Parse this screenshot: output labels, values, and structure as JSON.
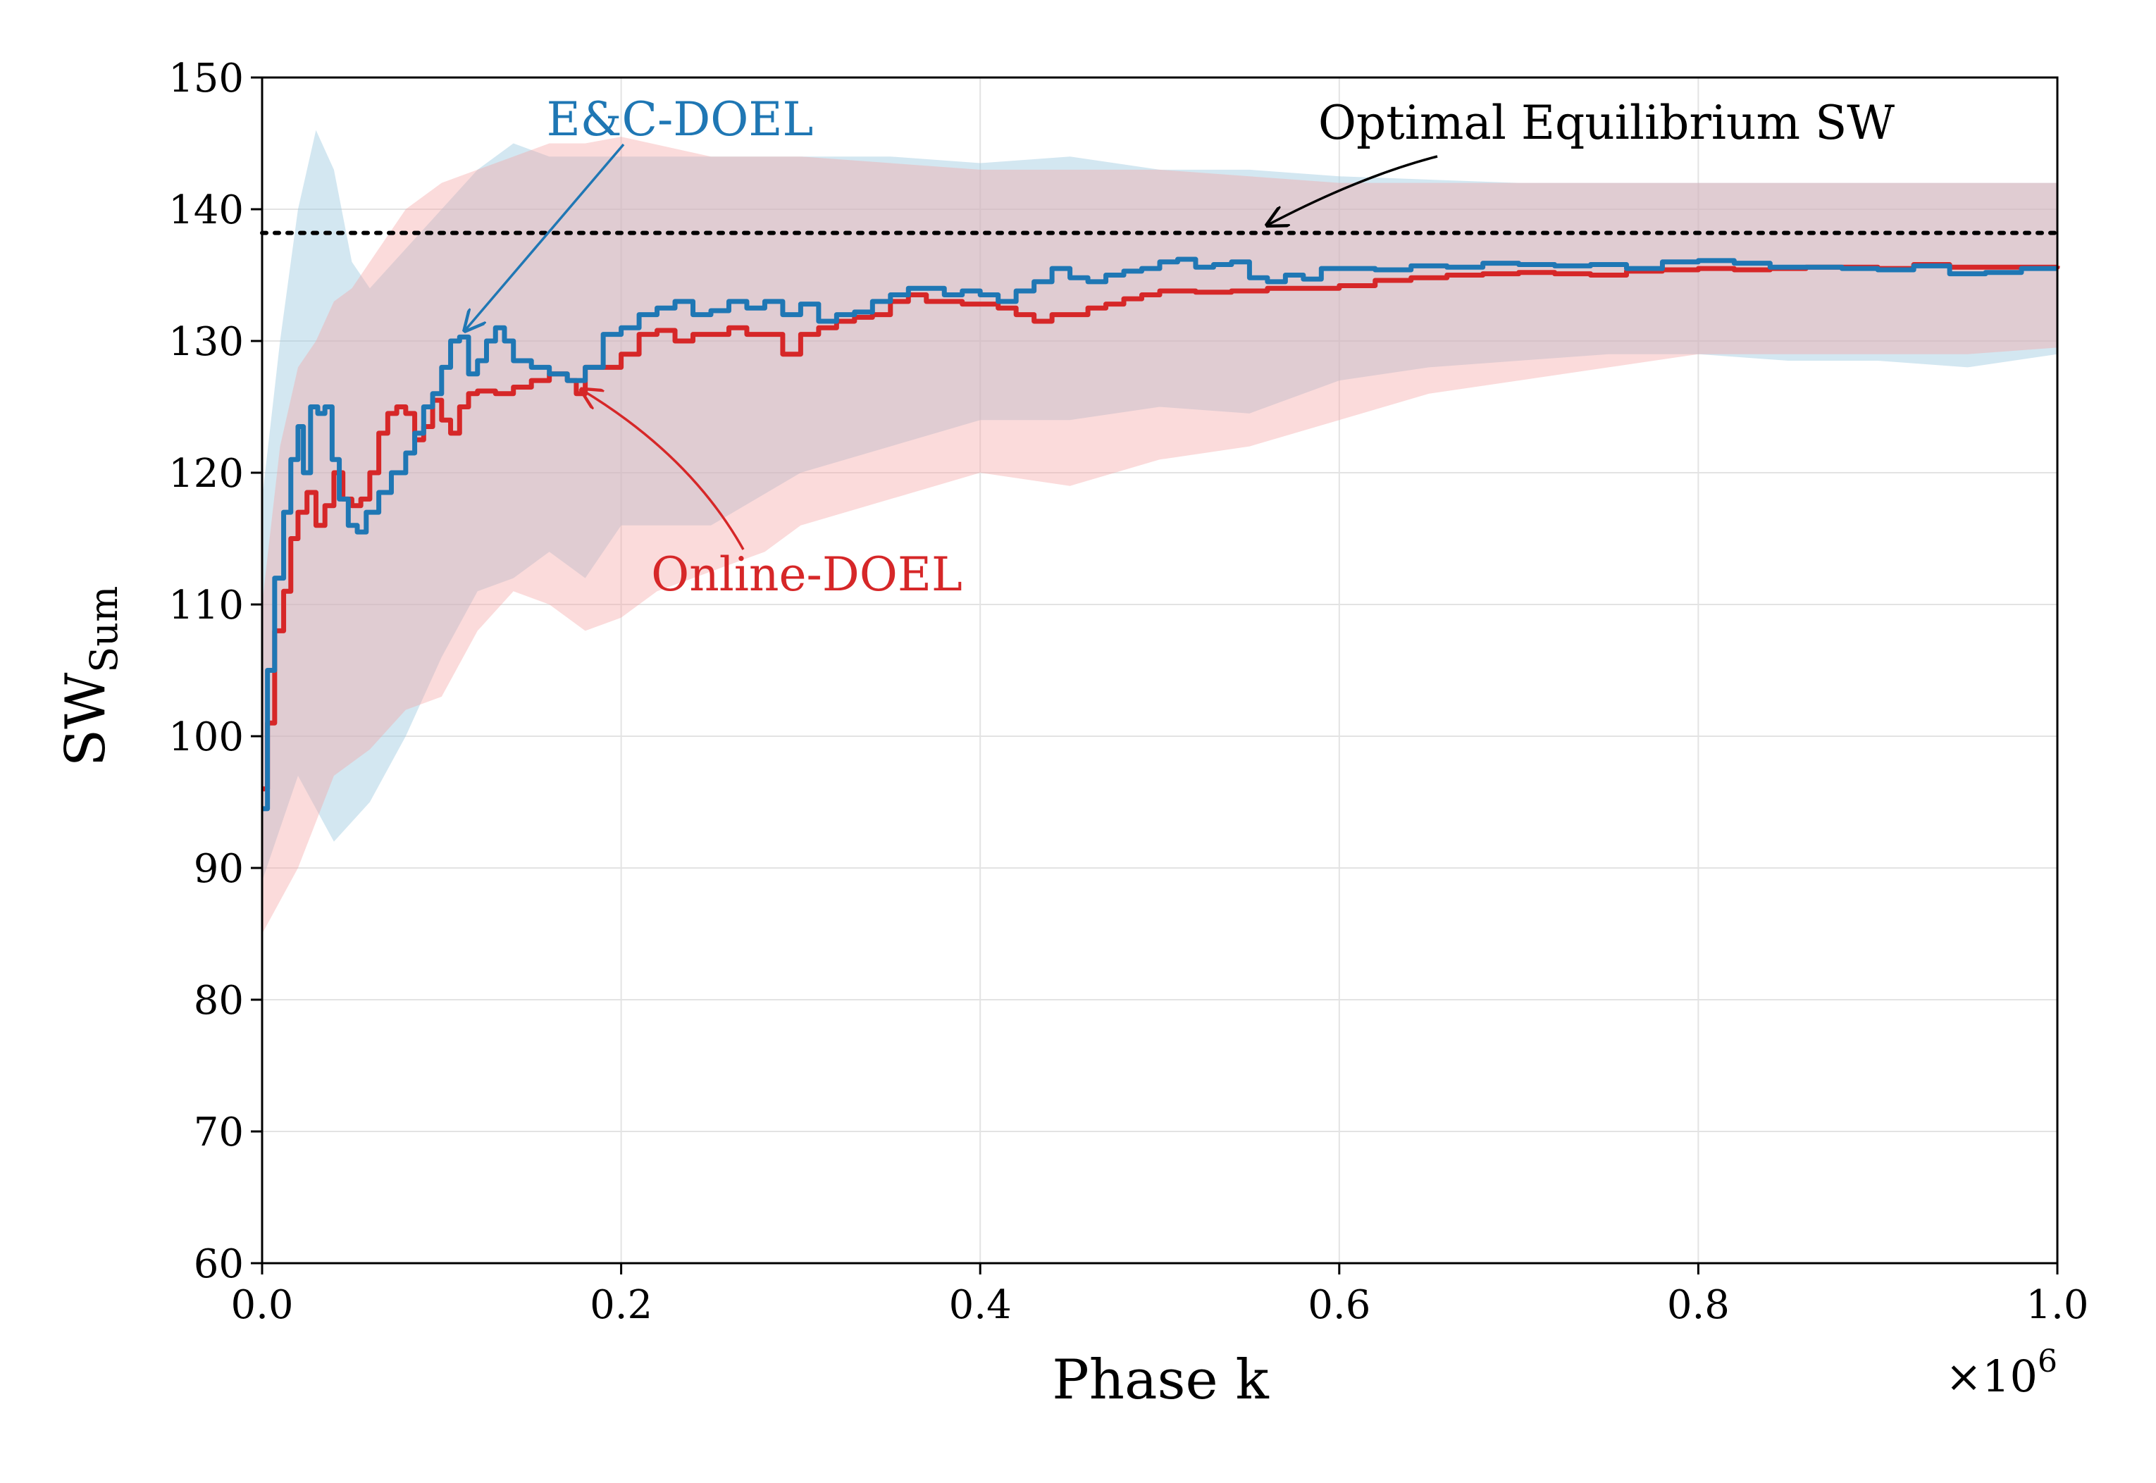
{
  "chart_data": {
    "type": "line",
    "xlabel": "Phase k",
    "ylabel_main": "SW",
    "ylabel_sub": "Sum",
    "x_multiplier_prefix": "×10",
    "x_multiplier_exp": "6",
    "xlim": [
      0,
      1.0
    ],
    "ylim": [
      60,
      150
    ],
    "xticks": [
      0.0,
      0.2,
      0.4,
      0.6,
      0.8,
      1.0
    ],
    "xtick_labels": [
      "0.0",
      "0.2",
      "0.4",
      "0.6",
      "0.8",
      "1.0"
    ],
    "yticks": [
      60,
      70,
      80,
      90,
      100,
      110,
      120,
      130,
      140,
      150
    ],
    "ytick_labels": [
      "60",
      "70",
      "80",
      "90",
      "100",
      "110",
      "120",
      "130",
      "140",
      "150"
    ],
    "grid": true,
    "reference_line": {
      "label": "Optimal Equilibrium SW",
      "y": 138.2,
      "style": "dotted",
      "color": "#000000"
    },
    "series": [
      {
        "name": "E&C-DOEL",
        "color": "#1f77b4",
        "band_color": "#9ecae1",
        "points": [
          [
            0.0,
            94.5
          ],
          [
            0.003,
            105
          ],
          [
            0.007,
            112
          ],
          [
            0.012,
            117
          ],
          [
            0.016,
            121
          ],
          [
            0.02,
            123.5
          ],
          [
            0.023,
            120
          ],
          [
            0.027,
            125
          ],
          [
            0.031,
            124.5
          ],
          [
            0.035,
            125
          ],
          [
            0.039,
            121
          ],
          [
            0.043,
            118
          ],
          [
            0.048,
            116
          ],
          [
            0.053,
            115.5
          ],
          [
            0.058,
            117
          ],
          [
            0.065,
            118.5
          ],
          [
            0.072,
            120
          ],
          [
            0.08,
            121.5
          ],
          [
            0.085,
            123
          ],
          [
            0.09,
            125
          ],
          [
            0.095,
            126
          ],
          [
            0.1,
            128
          ],
          [
            0.105,
            130
          ],
          [
            0.11,
            130.3
          ],
          [
            0.115,
            127.5
          ],
          [
            0.12,
            128.5
          ],
          [
            0.125,
            130
          ],
          [
            0.13,
            131
          ],
          [
            0.135,
            130
          ],
          [
            0.14,
            128.5
          ],
          [
            0.15,
            128
          ],
          [
            0.16,
            127.5
          ],
          [
            0.17,
            127
          ],
          [
            0.18,
            128
          ],
          [
            0.19,
            130.5
          ],
          [
            0.2,
            131
          ],
          [
            0.21,
            132
          ],
          [
            0.22,
            132.5
          ],
          [
            0.23,
            133
          ],
          [
            0.24,
            132
          ],
          [
            0.25,
            132.3
          ],
          [
            0.26,
            133
          ],
          [
            0.27,
            132.5
          ],
          [
            0.28,
            133
          ],
          [
            0.29,
            132
          ],
          [
            0.3,
            132.8
          ],
          [
            0.31,
            131.5
          ],
          [
            0.32,
            132
          ],
          [
            0.33,
            132.2
          ],
          [
            0.34,
            133
          ],
          [
            0.35,
            133.5
          ],
          [
            0.36,
            134
          ],
          [
            0.37,
            134
          ],
          [
            0.38,
            133.5
          ],
          [
            0.39,
            133.8
          ],
          [
            0.4,
            133.5
          ],
          [
            0.41,
            133
          ],
          [
            0.42,
            133.8
          ],
          [
            0.43,
            134.5
          ],
          [
            0.44,
            135.5
          ],
          [
            0.45,
            134.8
          ],
          [
            0.46,
            134.5
          ],
          [
            0.47,
            135
          ],
          [
            0.48,
            135.3
          ],
          [
            0.49,
            135.5
          ],
          [
            0.5,
            136
          ],
          [
            0.51,
            136.2
          ],
          [
            0.52,
            135.6
          ],
          [
            0.53,
            135.8
          ],
          [
            0.54,
            136
          ],
          [
            0.55,
            134.8
          ],
          [
            0.56,
            134.5
          ],
          [
            0.57,
            135
          ],
          [
            0.58,
            134.7
          ],
          [
            0.59,
            135.5
          ],
          [
            0.6,
            135.5
          ],
          [
            0.62,
            135.4
          ],
          [
            0.64,
            135.7
          ],
          [
            0.66,
            135.6
          ],
          [
            0.68,
            135.9
          ],
          [
            0.7,
            135.8
          ],
          [
            0.72,
            135.7
          ],
          [
            0.74,
            135.8
          ],
          [
            0.76,
            135.5
          ],
          [
            0.78,
            136
          ],
          [
            0.8,
            136.1
          ],
          [
            0.82,
            135.9
          ],
          [
            0.84,
            135.6
          ],
          [
            0.86,
            135.6
          ],
          [
            0.88,
            135.5
          ],
          [
            0.9,
            135.4
          ],
          [
            0.92,
            135.7
          ],
          [
            0.94,
            135.1
          ],
          [
            0.96,
            135.2
          ],
          [
            0.98,
            135.5
          ],
          [
            1.0,
            135.5
          ]
        ],
        "band_upper": [
          [
            0.0,
            118
          ],
          [
            0.01,
            130
          ],
          [
            0.02,
            140
          ],
          [
            0.03,
            146
          ],
          [
            0.04,
            143
          ],
          [
            0.05,
            136
          ],
          [
            0.06,
            134
          ],
          [
            0.08,
            137
          ],
          [
            0.1,
            140
          ],
          [
            0.12,
            143
          ],
          [
            0.14,
            145
          ],
          [
            0.16,
            144
          ],
          [
            0.18,
            144
          ],
          [
            0.2,
            144
          ],
          [
            0.25,
            144
          ],
          [
            0.3,
            144
          ],
          [
            0.35,
            144
          ],
          [
            0.4,
            143.5
          ],
          [
            0.45,
            144
          ],
          [
            0.5,
            143
          ],
          [
            0.55,
            143
          ],
          [
            0.6,
            142.5
          ],
          [
            0.7,
            142
          ],
          [
            0.8,
            142
          ],
          [
            0.9,
            142
          ],
          [
            1.0,
            142
          ]
        ],
        "band_lower": [
          [
            0.0,
            89
          ],
          [
            0.02,
            97
          ],
          [
            0.04,
            92
          ],
          [
            0.06,
            95
          ],
          [
            0.08,
            100
          ],
          [
            0.1,
            106
          ],
          [
            0.12,
            111
          ],
          [
            0.14,
            112
          ],
          [
            0.16,
            114
          ],
          [
            0.18,
            112
          ],
          [
            0.2,
            116
          ],
          [
            0.25,
            116
          ],
          [
            0.3,
            120
          ],
          [
            0.35,
            122
          ],
          [
            0.4,
            124
          ],
          [
            0.45,
            124
          ],
          [
            0.5,
            125
          ],
          [
            0.55,
            124.5
          ],
          [
            0.6,
            127
          ],
          [
            0.65,
            128
          ],
          [
            0.7,
            128.5
          ],
          [
            0.75,
            129
          ],
          [
            0.8,
            129
          ],
          [
            0.85,
            128.5
          ],
          [
            0.9,
            128.5
          ],
          [
            0.95,
            128
          ],
          [
            1.0,
            129
          ]
        ]
      },
      {
        "name": "Online-DOEL",
        "color": "#d62728",
        "band_color": "#f4a6a6",
        "points": [
          [
            0.0,
            96
          ],
          [
            0.003,
            101
          ],
          [
            0.007,
            108
          ],
          [
            0.012,
            111
          ],
          [
            0.016,
            115
          ],
          [
            0.02,
            117
          ],
          [
            0.025,
            118.5
          ],
          [
            0.03,
            116
          ],
          [
            0.035,
            117.5
          ],
          [
            0.04,
            120
          ],
          [
            0.045,
            118
          ],
          [
            0.05,
            117.5
          ],
          [
            0.055,
            118
          ],
          [
            0.06,
            120
          ],
          [
            0.065,
            123
          ],
          [
            0.07,
            124.5
          ],
          [
            0.075,
            125
          ],
          [
            0.08,
            124.5
          ],
          [
            0.085,
            122.5
          ],
          [
            0.09,
            123.5
          ],
          [
            0.095,
            125.5
          ],
          [
            0.1,
            124
          ],
          [
            0.105,
            123
          ],
          [
            0.11,
            125
          ],
          [
            0.115,
            126
          ],
          [
            0.12,
            126.2
          ],
          [
            0.13,
            126
          ],
          [
            0.14,
            126.5
          ],
          [
            0.15,
            127
          ],
          [
            0.16,
            127.5
          ],
          [
            0.17,
            127
          ],
          [
            0.175,
            126
          ],
          [
            0.18,
            128
          ],
          [
            0.19,
            128
          ],
          [
            0.2,
            129
          ],
          [
            0.21,
            130.5
          ],
          [
            0.22,
            130.8
          ],
          [
            0.23,
            130
          ],
          [
            0.24,
            130.5
          ],
          [
            0.25,
            130.5
          ],
          [
            0.26,
            131
          ],
          [
            0.27,
            130.5
          ],
          [
            0.28,
            130.5
          ],
          [
            0.29,
            129
          ],
          [
            0.3,
            130.5
          ],
          [
            0.31,
            131
          ],
          [
            0.32,
            131.5
          ],
          [
            0.33,
            131.8
          ],
          [
            0.34,
            132
          ],
          [
            0.35,
            133
          ],
          [
            0.36,
            133.5
          ],
          [
            0.37,
            133
          ],
          [
            0.38,
            133
          ],
          [
            0.39,
            132.8
          ],
          [
            0.4,
            132.8
          ],
          [
            0.41,
            132.5
          ],
          [
            0.42,
            132
          ],
          [
            0.43,
            131.5
          ],
          [
            0.44,
            132
          ],
          [
            0.45,
            132
          ],
          [
            0.46,
            132.5
          ],
          [
            0.47,
            132.8
          ],
          [
            0.48,
            133.2
          ],
          [
            0.49,
            133.5
          ],
          [
            0.5,
            133.8
          ],
          [
            0.52,
            133.7
          ],
          [
            0.54,
            133.8
          ],
          [
            0.56,
            134
          ],
          [
            0.58,
            134
          ],
          [
            0.6,
            134.2
          ],
          [
            0.62,
            134.6
          ],
          [
            0.64,
            134.8
          ],
          [
            0.66,
            135
          ],
          [
            0.68,
            135.1
          ],
          [
            0.7,
            135.2
          ],
          [
            0.72,
            135.1
          ],
          [
            0.74,
            135
          ],
          [
            0.76,
            135.3
          ],
          [
            0.78,
            135.4
          ],
          [
            0.8,
            135.5
          ],
          [
            0.82,
            135.4
          ],
          [
            0.84,
            135.5
          ],
          [
            0.86,
            135.6
          ],
          [
            0.88,
            135.6
          ],
          [
            0.9,
            135.5
          ],
          [
            0.92,
            135.8
          ],
          [
            0.94,
            135.6
          ],
          [
            0.96,
            135.6
          ],
          [
            0.98,
            135.6
          ],
          [
            1.0,
            135.7
          ]
        ],
        "band_upper": [
          [
            0.0,
            110
          ],
          [
            0.01,
            122
          ],
          [
            0.02,
            128
          ],
          [
            0.03,
            130
          ],
          [
            0.04,
            133
          ],
          [
            0.05,
            134
          ],
          [
            0.06,
            136
          ],
          [
            0.08,
            140
          ],
          [
            0.1,
            142
          ],
          [
            0.12,
            143
          ],
          [
            0.14,
            144
          ],
          [
            0.16,
            145
          ],
          [
            0.18,
            145
          ],
          [
            0.2,
            145.5
          ],
          [
            0.25,
            144
          ],
          [
            0.3,
            144
          ],
          [
            0.35,
            143.5
          ],
          [
            0.4,
            143
          ],
          [
            0.45,
            143
          ],
          [
            0.5,
            143
          ],
          [
            0.55,
            142.5
          ],
          [
            0.6,
            142
          ],
          [
            0.7,
            142
          ],
          [
            0.8,
            142
          ],
          [
            0.9,
            142
          ],
          [
            1.0,
            142
          ]
        ],
        "band_lower": [
          [
            0.0,
            85
          ],
          [
            0.02,
            90
          ],
          [
            0.04,
            97
          ],
          [
            0.06,
            99
          ],
          [
            0.08,
            102
          ],
          [
            0.1,
            103
          ],
          [
            0.12,
            108
          ],
          [
            0.14,
            111
          ],
          [
            0.16,
            110
          ],
          [
            0.18,
            108
          ],
          [
            0.2,
            109
          ],
          [
            0.22,
            111
          ],
          [
            0.24,
            112
          ],
          [
            0.26,
            113
          ],
          [
            0.28,
            114
          ],
          [
            0.3,
            116
          ],
          [
            0.35,
            118
          ],
          [
            0.4,
            120
          ],
          [
            0.45,
            119
          ],
          [
            0.5,
            121
          ],
          [
            0.55,
            122
          ],
          [
            0.6,
            124
          ],
          [
            0.65,
            126
          ],
          [
            0.7,
            127
          ],
          [
            0.75,
            128
          ],
          [
            0.8,
            129
          ],
          [
            0.85,
            129
          ],
          [
            0.9,
            129
          ],
          [
            0.95,
            129
          ],
          [
            1.0,
            129.5
          ]
        ]
      }
    ],
    "annotations": [
      {
        "text": "E&C-DOEL",
        "color": "#1f77b4",
        "arrow_to": [
          0.113,
          130.8
        ]
      },
      {
        "text": "Online-DOEL",
        "color": "#d62728",
        "arrow_to": [
          0.178,
          126.3
        ]
      },
      {
        "text": "Optimal Equilibrium SW",
        "color": "#000000",
        "arrow_to": [
          0.56,
          138.8
        ]
      }
    ]
  }
}
